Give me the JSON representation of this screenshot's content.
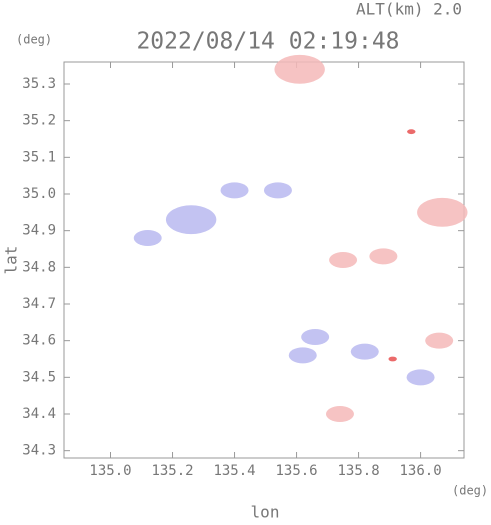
{
  "chart_data": {
    "type": "scatter",
    "header": "ALT(km) 2.0",
    "title": "2022/08/14 02:19:48",
    "y_unit": "(deg)",
    "x_unit": "(deg)",
    "ylabel": "lat",
    "xlabel": "lon",
    "xlim": [
      134.85,
      136.14
    ],
    "ylim": [
      34.28,
      35.36
    ],
    "xticks": [
      {
        "value": 135.0,
        "label": "135.0"
      },
      {
        "value": 135.2,
        "label": "135.2"
      },
      {
        "value": 135.4,
        "label": "135.4"
      },
      {
        "value": 135.6,
        "label": "135.6"
      },
      {
        "value": 135.8,
        "label": "135.8"
      },
      {
        "value": 136.0,
        "label": "136.0"
      }
    ],
    "yticks": [
      34.3,
      34.4,
      34.5,
      34.6,
      34.7,
      34.8,
      34.9,
      {
        "value": 35.0,
        "label": "35.0"
      },
      35.1,
      35.2,
      35.3
    ],
    "series": [
      {
        "color": "#b8b8f0",
        "x": [
          135.26,
          135.12,
          135.4,
          135.66,
          135.62,
          135.82,
          136.0,
          135.54
        ],
        "values": [
          34.93,
          34.88,
          35.01,
          34.61,
          34.56,
          34.57,
          34.5,
          35.01
        ]
      },
      {
        "color": "#f5b8b8",
        "x": [
          135.61,
          136.07,
          135.75,
          135.88,
          136.06,
          135.74
        ],
        "values": [
          35.34,
          34.95,
          34.82,
          34.83,
          34.6,
          34.4
        ]
      },
      {
        "color": "#e85050",
        "x": [
          135.97,
          135.91
        ],
        "values": [
          35.17,
          34.55
        ]
      }
    ]
  }
}
